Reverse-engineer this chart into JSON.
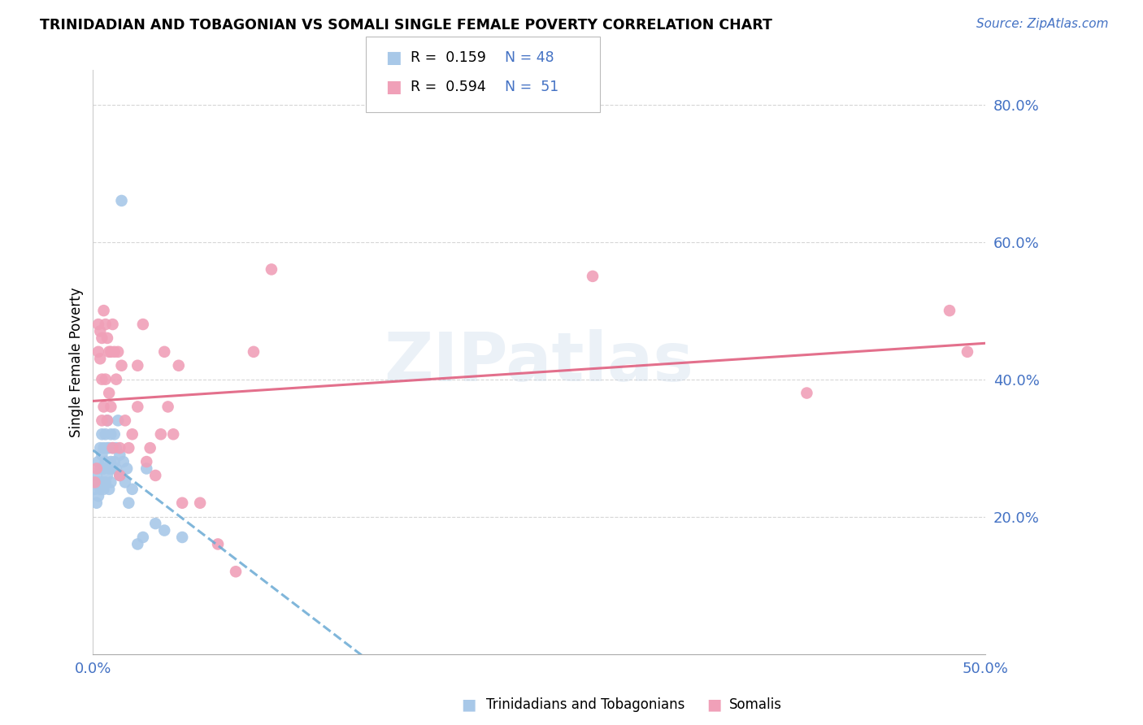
{
  "title": "TRINIDADIAN AND TOBAGONIAN VS SOMALI SINGLE FEMALE POVERTY CORRELATION CHART",
  "source": "Source: ZipAtlas.com",
  "ylabel": "Single Female Poverty",
  "watermark": "ZIPatlas",
  "xlim": [
    0.0,
    0.5
  ],
  "ylim": [
    0.0,
    0.85
  ],
  "series1_color": "#a8c8e8",
  "series2_color": "#f0a0b8",
  "line1_color": "#6aaad4",
  "line2_color": "#e06080",
  "ytick_vals": [
    0.2,
    0.4,
    0.6,
    0.8
  ],
  "ytick_labels": [
    "20.0%",
    "40.0%",
    "60.0%",
    "80.0%"
  ],
  "xtick_vals": [
    0.0,
    0.1,
    0.2,
    0.3,
    0.4,
    0.5
  ],
  "xtick_labels": [
    "0.0%",
    "",
    "",
    "",
    "",
    "50.0%"
  ],
  "trinidadian_x": [
    0.001,
    0.002,
    0.002,
    0.003,
    0.003,
    0.003,
    0.004,
    0.004,
    0.004,
    0.005,
    0.005,
    0.005,
    0.006,
    0.006,
    0.006,
    0.007,
    0.007,
    0.007,
    0.008,
    0.008,
    0.008,
    0.009,
    0.009,
    0.009,
    0.01,
    0.01,
    0.01,
    0.011,
    0.011,
    0.012,
    0.012,
    0.013,
    0.013,
    0.014,
    0.015,
    0.015,
    0.016,
    0.017,
    0.018,
    0.019,
    0.02,
    0.022,
    0.025,
    0.028,
    0.03,
    0.035,
    0.04,
    0.05
  ],
  "trinidadian_y": [
    0.24,
    0.26,
    0.22,
    0.28,
    0.25,
    0.23,
    0.3,
    0.27,
    0.24,
    0.32,
    0.29,
    0.25,
    0.3,
    0.27,
    0.24,
    0.32,
    0.28,
    0.25,
    0.34,
    0.3,
    0.26,
    0.3,
    0.27,
    0.24,
    0.32,
    0.28,
    0.25,
    0.3,
    0.27,
    0.32,
    0.28,
    0.3,
    0.27,
    0.34,
    0.29,
    0.26,
    0.66,
    0.28,
    0.25,
    0.27,
    0.22,
    0.24,
    0.16,
    0.17,
    0.27,
    0.19,
    0.18,
    0.17
  ],
  "somali_x": [
    0.001,
    0.002,
    0.003,
    0.003,
    0.004,
    0.004,
    0.005,
    0.005,
    0.005,
    0.006,
    0.006,
    0.007,
    0.007,
    0.008,
    0.008,
    0.009,
    0.009,
    0.01,
    0.01,
    0.011,
    0.011,
    0.012,
    0.013,
    0.014,
    0.015,
    0.015,
    0.016,
    0.018,
    0.02,
    0.022,
    0.025,
    0.025,
    0.028,
    0.03,
    0.032,
    0.035,
    0.038,
    0.04,
    0.042,
    0.045,
    0.048,
    0.05,
    0.06,
    0.07,
    0.08,
    0.09,
    0.1,
    0.28,
    0.4,
    0.48,
    0.49
  ],
  "somali_y": [
    0.25,
    0.27,
    0.48,
    0.44,
    0.47,
    0.43,
    0.46,
    0.4,
    0.34,
    0.5,
    0.36,
    0.48,
    0.4,
    0.46,
    0.34,
    0.44,
    0.38,
    0.44,
    0.36,
    0.48,
    0.3,
    0.44,
    0.4,
    0.44,
    0.3,
    0.26,
    0.42,
    0.34,
    0.3,
    0.32,
    0.42,
    0.36,
    0.48,
    0.28,
    0.3,
    0.26,
    0.32,
    0.44,
    0.36,
    0.32,
    0.42,
    0.22,
    0.22,
    0.16,
    0.12,
    0.44,
    0.56,
    0.55,
    0.38,
    0.5,
    0.44
  ]
}
